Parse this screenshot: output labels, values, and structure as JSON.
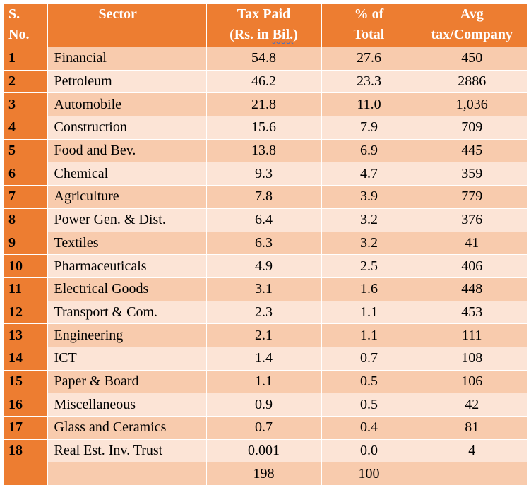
{
  "header": {
    "sno_line1": "S.",
    "sno_line2": "No.",
    "sector": "Sector",
    "tax_line1": "Tax Paid",
    "tax_line2_prefix": "(Rs. in ",
    "tax_line2_word": "Bil.",
    "tax_line2_suffix": ")",
    "pct_line1": "% of",
    "pct_line2": "Total",
    "avg_line1": "Avg",
    "avg_line2": "tax/Company"
  },
  "rows": [
    {
      "sno": "1",
      "sector": "Financial",
      "tax": "54.8",
      "pct": "27.6",
      "avg": "450"
    },
    {
      "sno": "2",
      "sector": "Petroleum",
      "tax": "46.2",
      "pct": "23.3",
      "avg": "2886"
    },
    {
      "sno": "3",
      "sector": "Automobile",
      "tax": "21.8",
      "pct": "11.0",
      "avg": "1,036"
    },
    {
      "sno": "4",
      "sector": "Construction",
      "tax": "15.6",
      "pct": "7.9",
      "avg": "709"
    },
    {
      "sno": "5",
      "sector": "Food and Bev.",
      "tax": "13.8",
      "pct": "6.9",
      "avg": "445"
    },
    {
      "sno": "6",
      "sector": "Chemical",
      "tax": "9.3",
      "pct": "4.7",
      "avg": "359"
    },
    {
      "sno": "7",
      "sector": "Agriculture",
      "tax": "7.8",
      "pct": "3.9",
      "avg": "779"
    },
    {
      "sno": "8",
      "sector": "Power Gen. & Dist.",
      "tax": "6.4",
      "pct": "3.2",
      "avg": "376"
    },
    {
      "sno": "9",
      "sector": "Textiles",
      "tax": "6.3",
      "pct": "3.2",
      "avg": "41"
    },
    {
      "sno": "10",
      "sector": "Pharmaceuticals",
      "tax": "4.9",
      "pct": "2.5",
      "avg": "406"
    },
    {
      "sno": "11",
      "sector": "Electrical Goods",
      "tax": "3.1",
      "pct": "1.6",
      "avg": "448"
    },
    {
      "sno": "12",
      "sector": "Transport & Com.",
      "tax": "2.3",
      "pct": "1.1",
      "avg": "453"
    },
    {
      "sno": "13",
      "sector": "Engineering",
      "tax": "2.1",
      "pct": "1.1",
      "avg": "111"
    },
    {
      "sno": "14",
      "sector": "ICT",
      "tax": "1.4",
      "pct": "0.7",
      "avg": "108"
    },
    {
      "sno": "15",
      "sector": "Paper & Board",
      "tax": "1.1",
      "pct": "0.5",
      "avg": "106"
    },
    {
      "sno": "16",
      "sector": "Miscellaneous",
      "tax": "0.9",
      "pct": "0.5",
      "avg": "42"
    },
    {
      "sno": "17",
      "sector": "Glass and Ceramics",
      "tax": "0.7",
      "pct": "0.4",
      "avg": "81"
    },
    {
      "sno": "18",
      "sector": "Real Est. Inv. Trust",
      "tax": "0.001",
      "pct": "0.0",
      "avg": "4"
    }
  ],
  "total": {
    "sno": "",
    "sector": "",
    "tax": "198",
    "pct": "100",
    "avg": ""
  }
}
